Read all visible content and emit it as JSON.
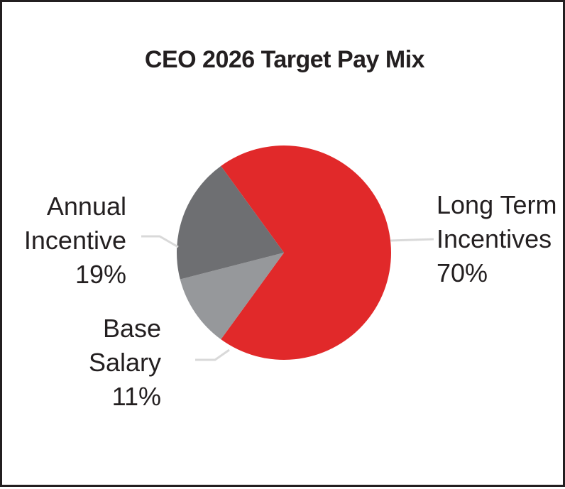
{
  "chart_data": {
    "type": "pie",
    "title": "CEO 2026 Target Pay Mix",
    "slices": [
      {
        "line1": "Long Term",
        "line2": "Incentives",
        "pct_label": "70%",
        "value": 70,
        "color": "#e1292a"
      },
      {
        "line1": "Base",
        "line2": "Salary",
        "pct_label": "11%",
        "value": 11,
        "color": "#96989b"
      },
      {
        "line1": "Annual",
        "line2": "Incentive",
        "pct_label": "19%",
        "value": 19,
        "color": "#6e6f72"
      }
    ],
    "leader_color": "#d9d9d9"
  }
}
